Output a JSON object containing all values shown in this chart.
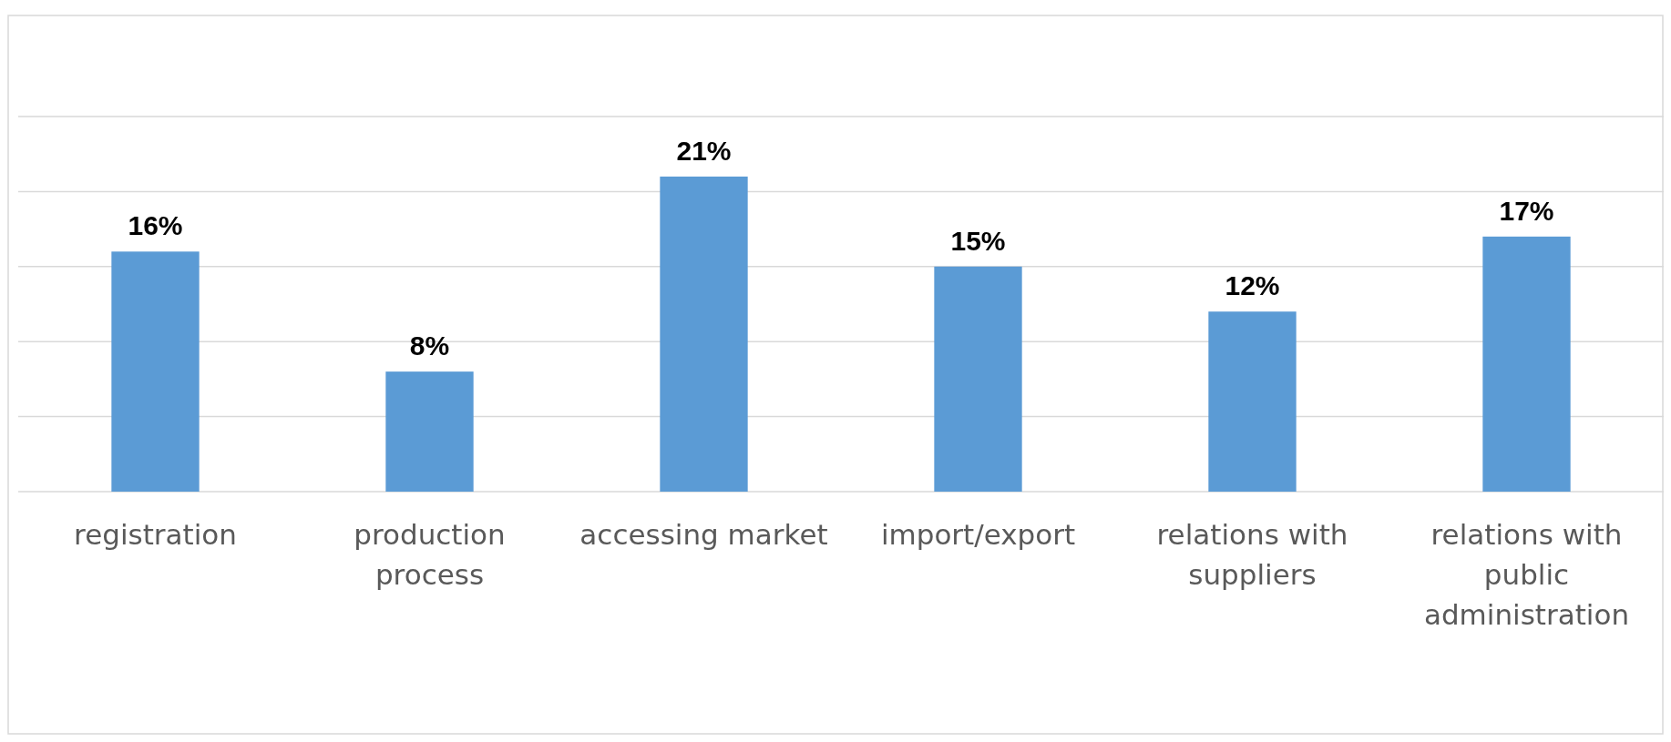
{
  "chart_data": {
    "type": "bar",
    "categories": [
      "registration",
      "production process",
      "accessing market",
      "import/export",
      "relations with suppliers",
      "relations with public administration"
    ],
    "values": [
      16,
      8,
      21,
      15,
      12,
      17
    ],
    "value_labels": [
      "16%",
      "8%",
      "21%",
      "15%",
      "12%",
      "17%"
    ],
    "color": "#5b9bd5",
    "ylim": [
      0,
      25
    ],
    "yticks": [
      {
        "value": 0,
        "label": null
      },
      {
        "value": 5,
        "label": null
      },
      {
        "value": 10,
        "label": null
      },
      {
        "value": 15,
        "label": null
      },
      {
        "value": 20,
        "label": null
      },
      {
        "value": 25,
        "label": null
      }
    ],
    "grid": "y",
    "tick_labels": "x"
  }
}
